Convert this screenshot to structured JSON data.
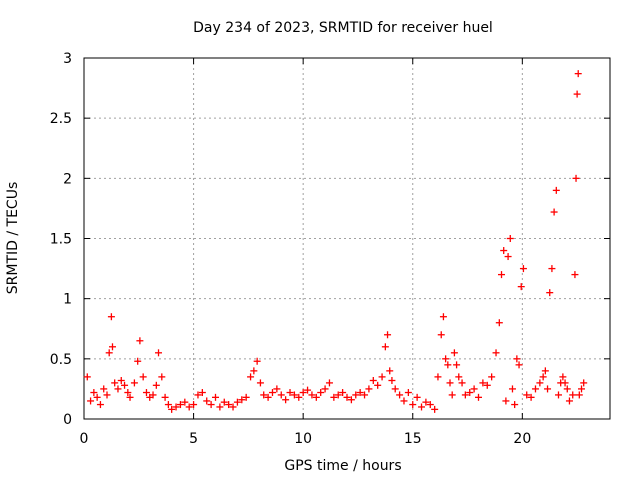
{
  "chart_data": {
    "type": "scatter",
    "title": "Day 234 of 2023, SRMTID for receiver huel",
    "xlabel": "GPS time / hours",
    "ylabel": "SRMTID / TECUs",
    "xlim": [
      0,
      24
    ],
    "ylim": [
      0,
      3
    ],
    "xticks": [
      0,
      5,
      10,
      15,
      20
    ],
    "xtick_labels": [
      "0",
      "5",
      "10",
      "15",
      "20"
    ],
    "yticks": [
      0,
      0.5,
      1,
      1.5,
      2,
      2.5,
      3
    ],
    "ytick_labels": [
      "0",
      "0.5",
      "1",
      "1.5",
      "2",
      "2.5",
      "3"
    ],
    "grid": true,
    "marker": "+",
    "series": [
      {
        "name": "SRMTID",
        "color": "#ff0000",
        "x": [
          0.15,
          0.3,
          0.45,
          0.6,
          0.75,
          0.9,
          1.05,
          1.15,
          1.25,
          1.3,
          1.4,
          1.55,
          1.7,
          1.85,
          2.0,
          2.1,
          2.3,
          2.45,
          2.55,
          2.7,
          2.85,
          3.0,
          3.15,
          3.3,
          3.4,
          3.55,
          3.7,
          3.85,
          4.0,
          4.2,
          4.4,
          4.6,
          4.8,
          5.0,
          5.2,
          5.4,
          5.6,
          5.8,
          6.0,
          6.2,
          6.4,
          6.6,
          6.8,
          7.0,
          7.2,
          7.4,
          7.6,
          7.75,
          7.9,
          8.05,
          8.2,
          8.4,
          8.6,
          8.8,
          9.0,
          9.2,
          9.4,
          9.6,
          9.8,
          10.0,
          10.2,
          10.4,
          10.6,
          10.8,
          11.0,
          11.2,
          11.4,
          11.6,
          11.8,
          12.0,
          12.2,
          12.4,
          12.6,
          12.8,
          13.0,
          13.2,
          13.4,
          13.6,
          13.75,
          13.85,
          13.95,
          14.05,
          14.2,
          14.4,
          14.6,
          14.8,
          15.0,
          15.2,
          15.4,
          15.6,
          15.8,
          16.0,
          16.15,
          16.3,
          16.4,
          16.5,
          16.6,
          16.7,
          16.8,
          16.9,
          17.0,
          17.1,
          17.25,
          17.4,
          17.6,
          17.8,
          18.0,
          18.2,
          18.4,
          18.6,
          18.8,
          18.95,
          19.05,
          19.15,
          19.25,
          19.35,
          19.45,
          19.55,
          19.65,
          19.75,
          19.85,
          19.95,
          20.05,
          20.2,
          20.4,
          20.6,
          20.8,
          20.95,
          21.05,
          21.15,
          21.25,
          21.35,
          21.45,
          21.55,
          21.65,
          21.75,
          21.85,
          21.95,
          22.05,
          22.15,
          22.3,
          22.4,
          22.45,
          22.5,
          22.55,
          22.6,
          22.7,
          22.8
        ],
        "y": [
          0.35,
          0.15,
          0.22,
          0.18,
          0.12,
          0.25,
          0.2,
          0.55,
          0.85,
          0.6,
          0.3,
          0.25,
          0.32,
          0.28,
          0.22,
          0.18,
          0.3,
          0.48,
          0.65,
          0.35,
          0.22,
          0.18,
          0.2,
          0.28,
          0.55,
          0.35,
          0.18,
          0.12,
          0.08,
          0.1,
          0.12,
          0.14,
          0.1,
          0.12,
          0.2,
          0.22,
          0.15,
          0.12,
          0.18,
          0.1,
          0.14,
          0.12,
          0.1,
          0.14,
          0.16,
          0.18,
          0.35,
          0.4,
          0.48,
          0.3,
          0.2,
          0.18,
          0.22,
          0.25,
          0.2,
          0.16,
          0.22,
          0.2,
          0.18,
          0.22,
          0.24,
          0.2,
          0.18,
          0.22,
          0.25,
          0.3,
          0.18,
          0.2,
          0.22,
          0.18,
          0.16,
          0.2,
          0.22,
          0.2,
          0.25,
          0.32,
          0.28,
          0.35,
          0.6,
          0.7,
          0.4,
          0.32,
          0.25,
          0.2,
          0.15,
          0.22,
          0.12,
          0.18,
          0.1,
          0.14,
          0.12,
          0.08,
          0.35,
          0.7,
          0.85,
          0.5,
          0.45,
          0.3,
          0.2,
          0.55,
          0.45,
          0.35,
          0.3,
          0.2,
          0.22,
          0.25,
          0.18,
          0.3,
          0.28,
          0.35,
          0.55,
          0.8,
          1.2,
          1.4,
          0.15,
          1.35,
          1.5,
          0.25,
          0.12,
          0.5,
          0.45,
          1.1,
          1.25,
          0.2,
          0.18,
          0.25,
          0.3,
          0.35,
          0.4,
          0.25,
          1.05,
          1.25,
          1.72,
          1.9,
          0.2,
          0.3,
          0.35,
          0.3,
          0.25,
          0.15,
          0.2,
          1.2,
          2.0,
          2.7,
          2.87,
          0.2,
          0.25,
          0.3
        ]
      }
    ]
  }
}
